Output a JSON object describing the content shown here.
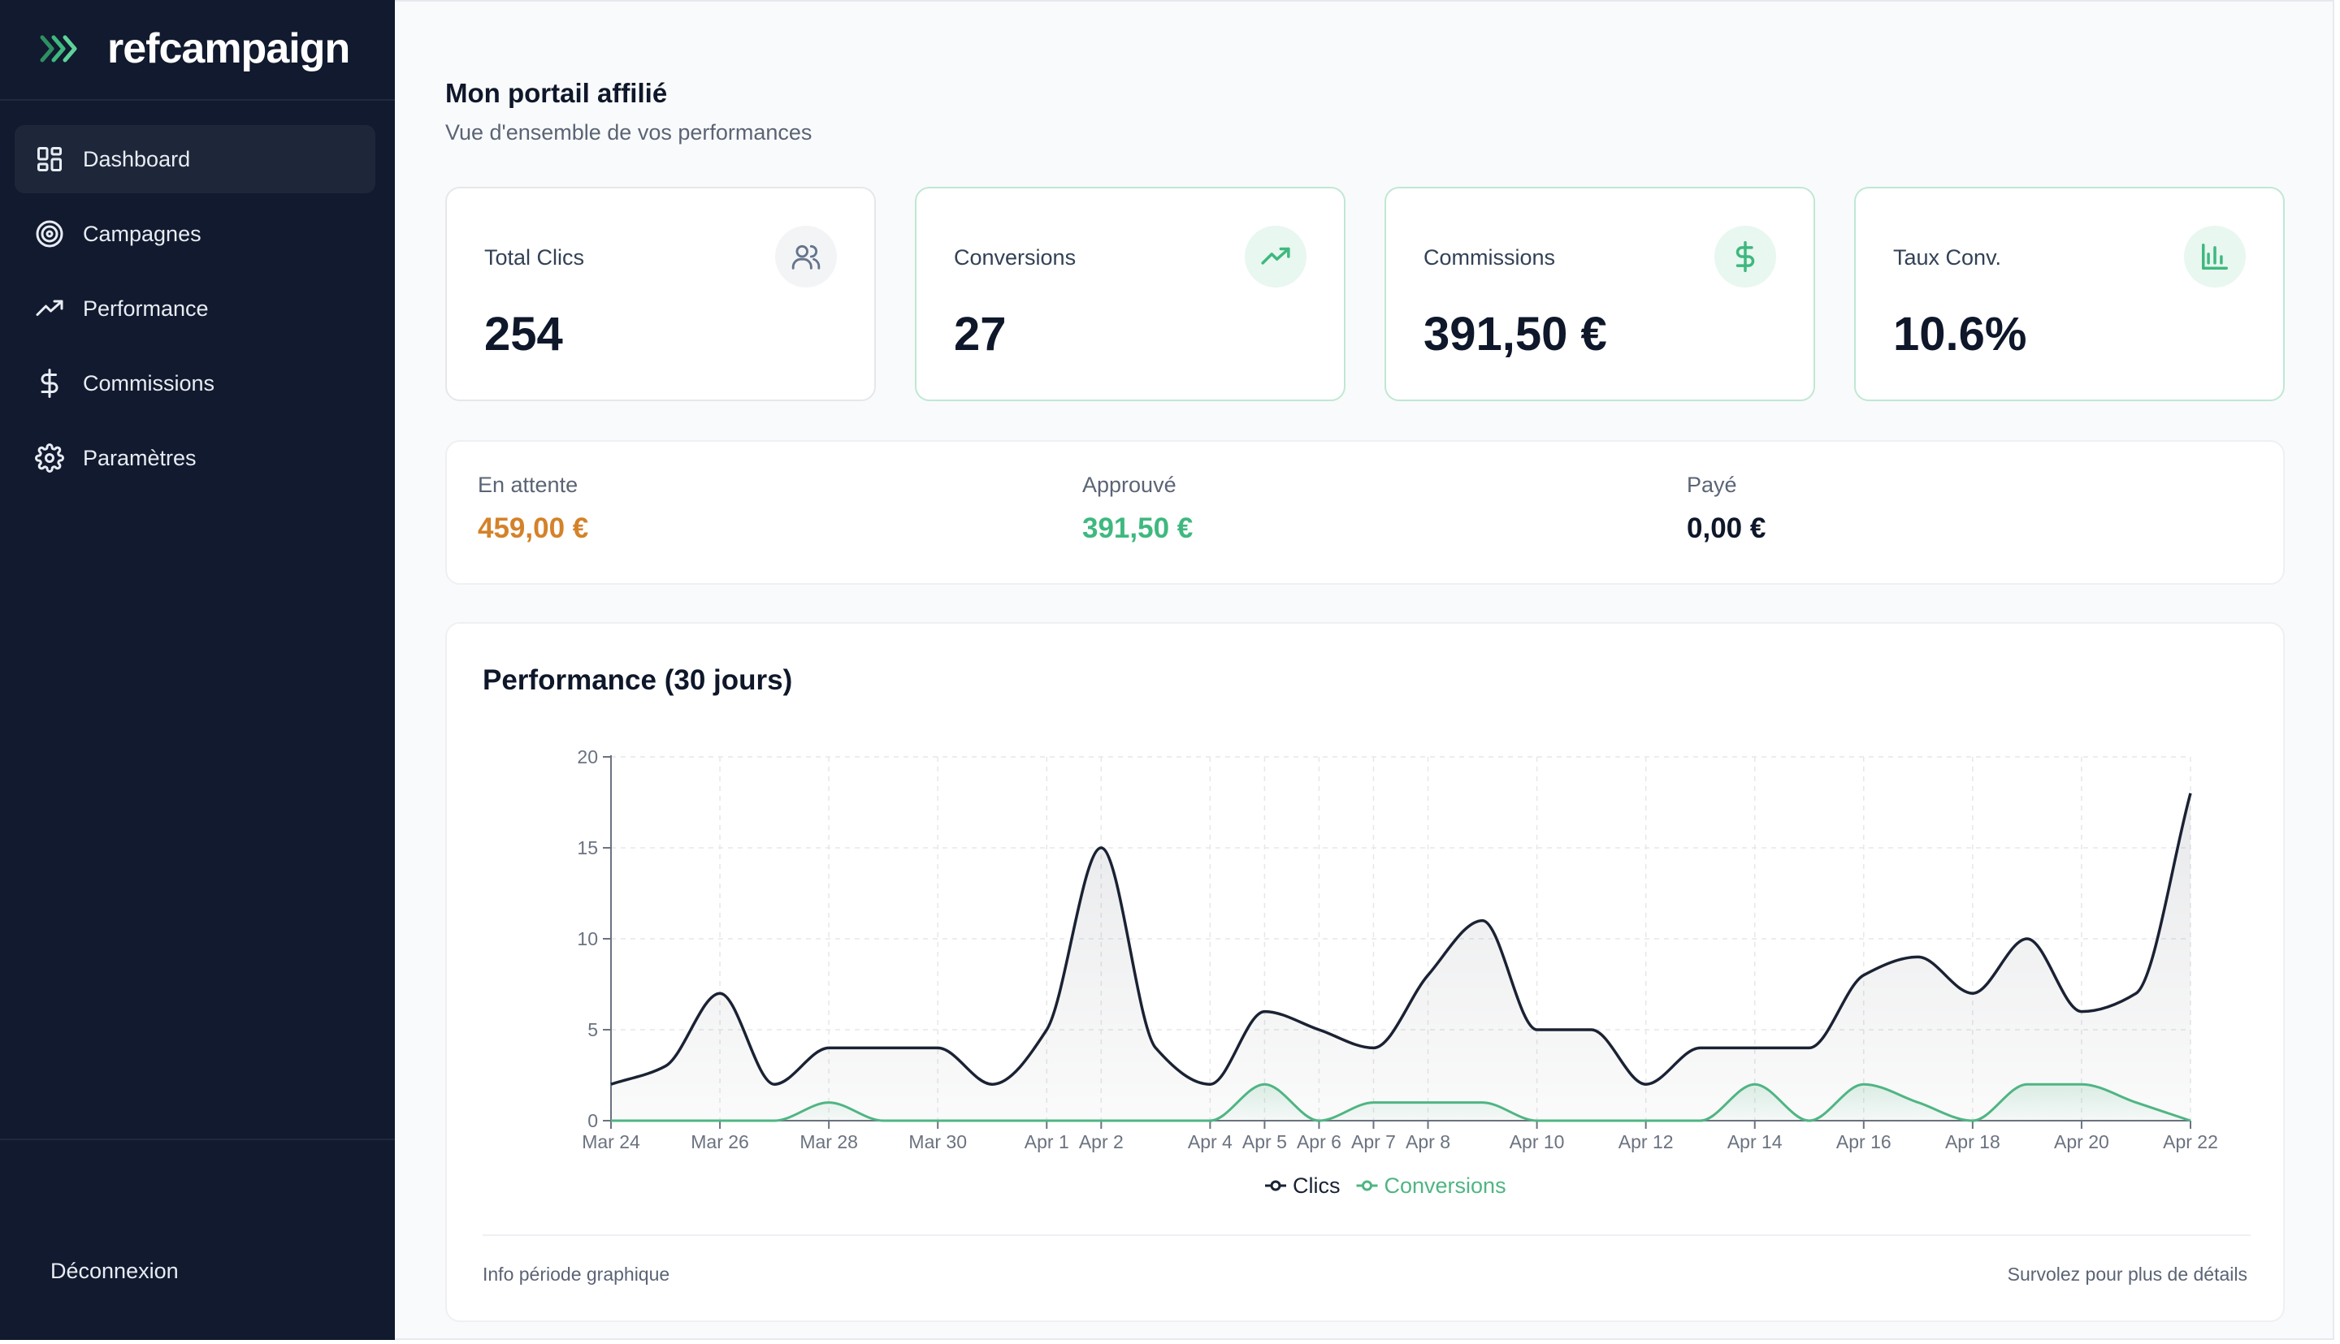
{
  "app": {
    "name": "refcampaign",
    "brand_color": "#3fb87f"
  },
  "sidebar": {
    "items": [
      {
        "label": "Dashboard",
        "icon": "dashboard-grid-icon",
        "active": true
      },
      {
        "label": "Campagnes",
        "icon": "target-icon",
        "active": false
      },
      {
        "label": "Performance",
        "icon": "trending-up-icon",
        "active": false
      },
      {
        "label": "Commissions",
        "icon": "dollar-icon",
        "active": false
      },
      {
        "label": "Paramètres",
        "icon": "gear-icon",
        "active": false
      }
    ],
    "logout_label": "Déconnexion"
  },
  "header": {
    "title": "Mon portail affilié",
    "subtitle": "Vue d'ensemble de vos performances"
  },
  "stats": [
    {
      "label": "Total Clics",
      "value": "254",
      "icon": "users-icon"
    },
    {
      "label": "Conversions",
      "value": "27",
      "icon": "trending-up-icon"
    },
    {
      "label": "Commissions",
      "value": "391,50 €",
      "icon": "dollar-icon"
    },
    {
      "label": "Taux Conv.",
      "value": "10.6%",
      "icon": "bar-chart-icon"
    }
  ],
  "commission_status": [
    {
      "label": "En attente",
      "value": "459,00 €",
      "color": "#d4822a"
    },
    {
      "label": "Approuvé",
      "value": "391,50 €",
      "color": "#3fb87f"
    },
    {
      "label": "Payé",
      "value": "0,00 €",
      "color": "#0f172a"
    }
  ],
  "chart_panel": {
    "title": "Performance (30 jours)",
    "footer_left": "Info période graphique",
    "footer_right": "Survolez pour plus de détails"
  },
  "chart_data": {
    "type": "area",
    "xlabel": "",
    "ylabel": "",
    "ylim": [
      0,
      20
    ],
    "yticks": [
      0,
      5,
      10,
      15,
      20
    ],
    "x": [
      "Mar 24",
      "Mar 25",
      "Mar 26",
      "Mar 27",
      "Mar 28",
      "Mar 29",
      "Mar 30",
      "Mar 31",
      "Apr 1",
      "Apr 2",
      "Apr 3",
      "Apr 4",
      "Apr 5",
      "Apr 6",
      "Apr 7",
      "Apr 8",
      "Apr 9",
      "Apr 10",
      "Apr 11",
      "Apr 12",
      "Apr 13",
      "Apr 14",
      "Apr 15",
      "Apr 16",
      "Apr 17",
      "Apr 18",
      "Apr 19",
      "Apr 20",
      "Apr 21",
      "Apr 22"
    ],
    "xticks": [
      "Mar 24",
      "Mar 26",
      "Mar 28",
      "Mar 30",
      "Apr 1",
      "Apr 2",
      "Apr 4",
      "Apr 5",
      "Apr 6",
      "Apr 7",
      "Apr 8",
      "Apr 10",
      "Apr 12",
      "Apr 14",
      "Apr 16",
      "Apr 18",
      "Apr 20",
      "Apr 22"
    ],
    "series": [
      {
        "name": "Clics",
        "color": "#1a2233",
        "values": [
          2,
          3,
          7,
          2,
          4,
          4,
          4,
          2,
          5,
          15,
          4,
          2,
          6,
          5,
          4,
          8,
          11,
          5,
          5,
          2,
          4,
          4,
          4,
          8,
          9,
          7,
          10,
          6,
          7,
          18
        ]
      },
      {
        "name": "Conversions",
        "color": "#4fb583",
        "values": [
          0,
          0,
          0,
          0,
          1,
          0,
          0,
          0,
          0,
          0,
          0,
          0,
          2,
          0,
          1,
          1,
          1,
          0,
          0,
          0,
          0,
          2,
          0,
          2,
          1,
          0,
          2,
          2,
          1,
          0
        ]
      }
    ],
    "grid": true,
    "legend": "bottom-center"
  }
}
